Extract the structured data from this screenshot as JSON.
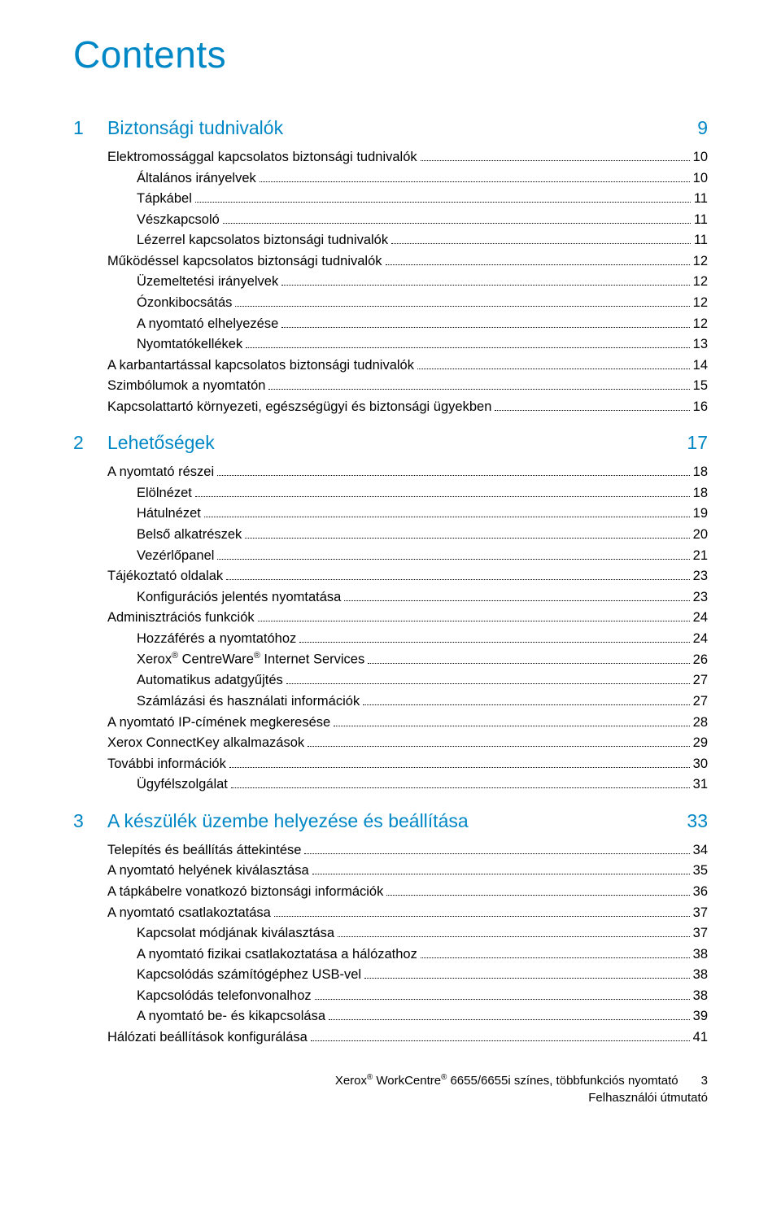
{
  "page": {
    "title": "Contents",
    "background_color": "#ffffff",
    "accent_color": "#0087c6",
    "text_color": "#000000",
    "title_fontsize": 46,
    "section_fontsize": 23,
    "entry_fontsize": 16.5
  },
  "sections": [
    {
      "num": "1",
      "title": "Biztonsági tudnivalók",
      "page": "9",
      "entries": [
        {
          "lvl": 1,
          "text": "Elektromossággal kapcsolatos biztonsági tudnivalók",
          "page": "10"
        },
        {
          "lvl": 2,
          "text": "Általános irányelvek",
          "page": "10"
        },
        {
          "lvl": 2,
          "text": "Tápkábel",
          "page": "11"
        },
        {
          "lvl": 2,
          "text": "Vészkapcsoló",
          "page": "11"
        },
        {
          "lvl": 2,
          "text": "Lézerrel kapcsolatos biztonsági tudnivalók",
          "page": "11"
        },
        {
          "lvl": 1,
          "text": "Működéssel kapcsolatos biztonsági tudnivalók",
          "page": "12"
        },
        {
          "lvl": 2,
          "text": "Üzemeltetési irányelvek",
          "page": "12"
        },
        {
          "lvl": 2,
          "text": "Ózonkibocsátás",
          "page": "12"
        },
        {
          "lvl": 2,
          "text": "A nyomtató elhelyezése",
          "page": "12"
        },
        {
          "lvl": 2,
          "text": "Nyomtatókellékek",
          "page": "13"
        },
        {
          "lvl": 1,
          "text": "A karbantartással kapcsolatos biztonsági tudnivalók",
          "page": "14"
        },
        {
          "lvl": 1,
          "text": "Szimbólumok a nyomtatón",
          "page": "15"
        },
        {
          "lvl": 1,
          "text": "Kapcsolattartó környezeti, egészségügyi és biztonsági ügyekben",
          "page": "16"
        }
      ]
    },
    {
      "num": "2",
      "title": "Lehetőségek",
      "page": "17",
      "entries": [
        {
          "lvl": 1,
          "text": "A nyomtató részei",
          "page": "18"
        },
        {
          "lvl": 2,
          "text": "Elölnézet",
          "page": "18"
        },
        {
          "lvl": 2,
          "text": "Hátulnézet",
          "page": "19"
        },
        {
          "lvl": 2,
          "text": "Belső alkatrészek",
          "page": "20"
        },
        {
          "lvl": 2,
          "text": "Vezérlőpanel",
          "page": "21"
        },
        {
          "lvl": 1,
          "text": "Tájékoztató oldalak",
          "page": "23"
        },
        {
          "lvl": 2,
          "text": "Konfigurációs jelentés nyomtatása",
          "page": "23"
        },
        {
          "lvl": 1,
          "text": "Adminisztrációs funkciók",
          "page": "24"
        },
        {
          "lvl": 2,
          "text": "Hozzáférés a nyomtatóhoz",
          "page": "24"
        },
        {
          "lvl": 2,
          "text_html": "Xerox<sup>®</sup> CentreWare<sup>®</sup> Internet Services",
          "page": "26"
        },
        {
          "lvl": 2,
          "text": "Automatikus adatgyűjtés",
          "page": "27"
        },
        {
          "lvl": 2,
          "text": "Számlázási és használati információk",
          "page": "27"
        },
        {
          "lvl": 1,
          "text": "A nyomtató IP-címének megkeresése",
          "page": "28"
        },
        {
          "lvl": 1,
          "text": "Xerox ConnectKey alkalmazások",
          "page": "29"
        },
        {
          "lvl": 1,
          "text": "További információk",
          "page": "30"
        },
        {
          "lvl": 2,
          "text": "Ügyfélszolgálat",
          "page": "31"
        }
      ]
    },
    {
      "num": "3",
      "title": "A készülék üzembe helyezése és beállítása",
      "page": "33",
      "entries": [
        {
          "lvl": 1,
          "text": "Telepítés és beállítás áttekintése",
          "page": "34"
        },
        {
          "lvl": 1,
          "text": "A nyomtató helyének kiválasztása",
          "page": "35"
        },
        {
          "lvl": 1,
          "text": "A tápkábelre vonatkozó biztonsági információk",
          "page": "36"
        },
        {
          "lvl": 1,
          "text": "A nyomtató csatlakoztatása",
          "page": "37"
        },
        {
          "lvl": 2,
          "text": "Kapcsolat módjának kiválasztása",
          "page": "37"
        },
        {
          "lvl": 2,
          "text": "A nyomtató fizikai csatlakoztatása a hálózathoz",
          "page": "38"
        },
        {
          "lvl": 2,
          "text": "Kapcsolódás számítógéphez USB-vel",
          "page": "38"
        },
        {
          "lvl": 2,
          "text": "Kapcsolódás telefonvonalhoz",
          "page": "38"
        },
        {
          "lvl": 2,
          "text": "A nyomtató be- és kikapcsolása",
          "page": "39"
        },
        {
          "lvl": 1,
          "text": "Hálózati beállítások konfigurálása",
          "page": "41"
        }
      ]
    }
  ],
  "footer": {
    "line1_html": "Xerox<sup>®</sup> WorkCentre<sup>®</sup> 6655/6655i színes, többfunkciós nyomtató",
    "line2": "Felhasználói útmutató",
    "page_number": "3"
  }
}
